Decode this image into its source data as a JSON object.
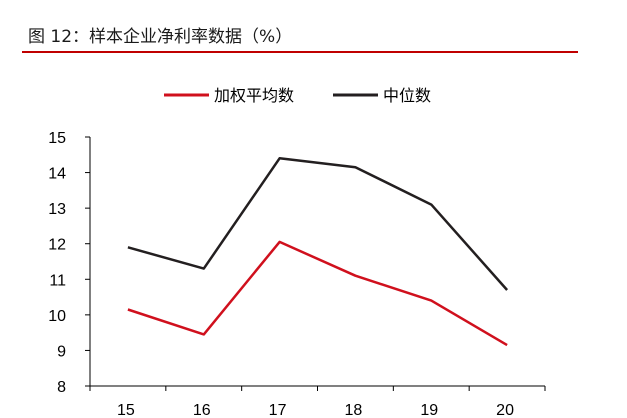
{
  "figure": {
    "title": "图 12：样本企业净利率数据（%）"
  },
  "colors": {
    "accent": "#c00000",
    "weighted_avg": "#d0101d",
    "median": "#231f20"
  },
  "chart_data": {
    "type": "line",
    "title": "",
    "xlabel": "",
    "ylabel": "",
    "categories": [
      "15",
      "16",
      "17",
      "18",
      "19",
      "20"
    ],
    "series": [
      {
        "name": "加权平均数",
        "color": "#d0101d",
        "values": [
          10.15,
          9.45,
          12.05,
          11.1,
          10.4,
          9.15
        ]
      },
      {
        "name": "中位数",
        "color": "#231f20",
        "values": [
          11.9,
          11.3,
          14.4,
          14.15,
          13.1,
          10.7
        ]
      }
    ],
    "ylim": [
      8,
      15
    ],
    "yticks": [
      "8",
      "9",
      "10",
      "11",
      "12",
      "13",
      "14",
      "15"
    ],
    "grid": false,
    "legend": "top-center"
  }
}
